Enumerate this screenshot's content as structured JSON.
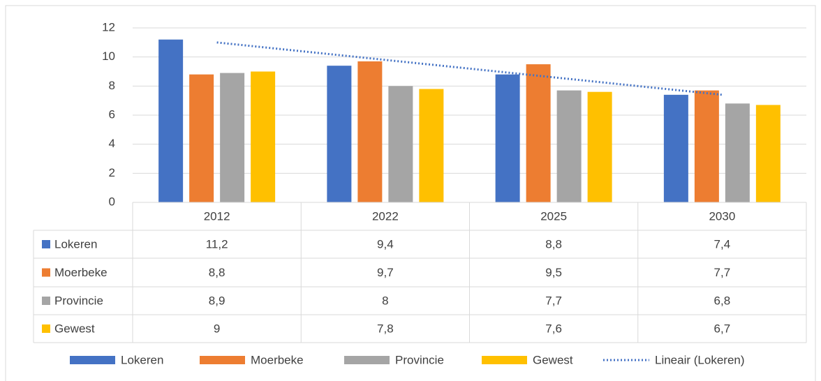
{
  "chart_data": {
    "type": "bar",
    "categories": [
      "2012",
      "2022",
      "2025",
      "2030"
    ],
    "series": [
      {
        "name": "Lokeren",
        "color": "#4472c4",
        "values": [
          11.2,
          9.4,
          8.8,
          7.4
        ],
        "value_labels": [
          "11,2",
          "9,4",
          "8,8",
          "7,4"
        ]
      },
      {
        "name": "Moerbeke",
        "color": "#ed7d31",
        "values": [
          8.8,
          9.7,
          9.5,
          7.7
        ],
        "value_labels": [
          "8,8",
          "9,7",
          "9,5",
          "7,7"
        ]
      },
      {
        "name": "Provincie",
        "color": "#a5a5a5",
        "values": [
          8.9,
          8,
          7.7,
          6.8
        ],
        "value_labels": [
          "8,9",
          "8",
          "7,7",
          "6,8"
        ]
      },
      {
        "name": "Gewest",
        "color": "#ffc000",
        "values": [
          9,
          7.8,
          7.6,
          6.7
        ],
        "value_labels": [
          "9",
          "7,8",
          "7,6",
          "6,7"
        ]
      }
    ],
    "trendline": {
      "name": "Lineair (Lokeren)",
      "series": 0,
      "kind": "linear",
      "color": "#4472c4"
    },
    "ylim": [
      0,
      12
    ],
    "yticks": [
      0,
      2,
      4,
      6,
      8,
      10,
      12
    ],
    "grid": true,
    "legend": "bottom",
    "data_table": true
  }
}
